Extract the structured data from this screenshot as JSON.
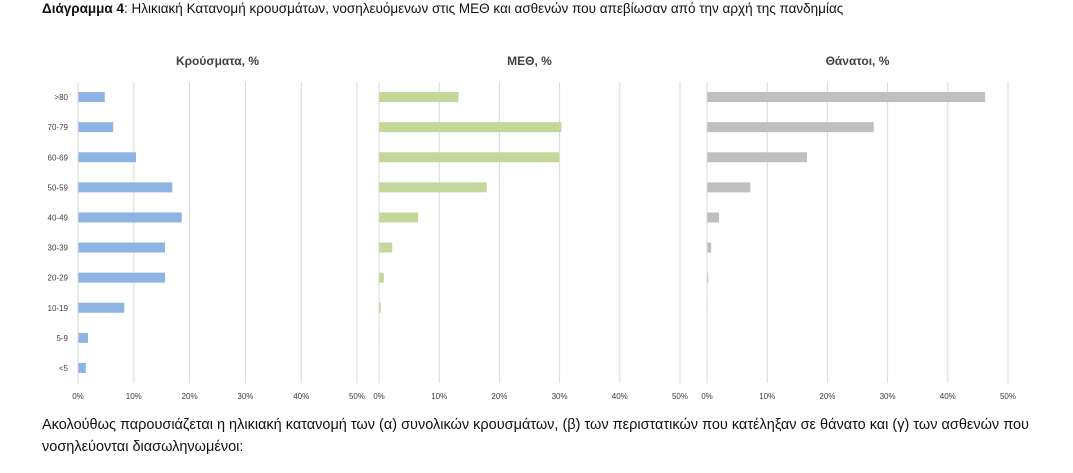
{
  "heading": {
    "label": "Διάγραμμα 4",
    "text": ": Ηλικιακή Κατανομή κρουσμάτων, νοσηλευόμενων στις ΜΕΘ και ασθενών που απεβίωσαν από την αρχή της πανδημίας"
  },
  "paragraph": "Ακολούθως παρουσιάζεται η ηλικιακή κατανομή των (α) συνολικών κρουσμάτων, (β) των περιστατικών που κατέληξαν σε θάνατο και (γ) των ασθενών που νοσηλεύονται διασωληνωμένοι:",
  "chart_data": [
    {
      "type": "bar",
      "orientation": "horizontal",
      "title": "Κρούσματα, %",
      "categories": [
        ">80",
        "70-79",
        "60-69",
        "50-59",
        "40-49",
        "30-39",
        "20-29",
        "10-19",
        "5-9",
        "<5"
      ],
      "values": [
        4.8,
        6.3,
        10.4,
        16.9,
        18.6,
        15.6,
        15.6,
        8.3,
        1.8,
        1.4
      ],
      "xlim": [
        0,
        50
      ],
      "xticks": [
        "0%",
        "10%",
        "20%",
        "30%",
        "40%",
        "50%"
      ],
      "color": "#8eb4e3",
      "grid": true
    },
    {
      "type": "bar",
      "orientation": "horizontal",
      "title": "ΜΕΘ, %",
      "categories": [
        ">80",
        "70-79",
        "60-69",
        "50-59",
        "40-49",
        "30-39",
        "20-29",
        "10-19",
        "5-9",
        "<5"
      ],
      "values": [
        13.2,
        30.3,
        29.9,
        17.9,
        6.5,
        2.2,
        0.8,
        0.3,
        0.1,
        0.0
      ],
      "xlim": [
        0,
        50
      ],
      "xticks": [
        "0%",
        "10%",
        "20%",
        "30%",
        "40%",
        "50%"
      ],
      "color": "#c4d79b",
      "grid": true
    },
    {
      "type": "bar",
      "orientation": "horizontal",
      "title": "Θάνατοι, %",
      "categories": [
        ">80",
        "70-79",
        "60-69",
        "50-59",
        "40-49",
        "30-39",
        "20-29",
        "10-19",
        "5-9",
        "<5"
      ],
      "values": [
        46.2,
        27.7,
        16.6,
        7.2,
        2.0,
        0.7,
        0.2,
        0.1,
        0.0,
        0.1
      ],
      "xlim": [
        0,
        50
      ],
      "xticks": [
        "0%",
        "10%",
        "20%",
        "30%",
        "40%",
        "50%"
      ],
      "color": "#bfbfbf",
      "grid": true
    }
  ]
}
